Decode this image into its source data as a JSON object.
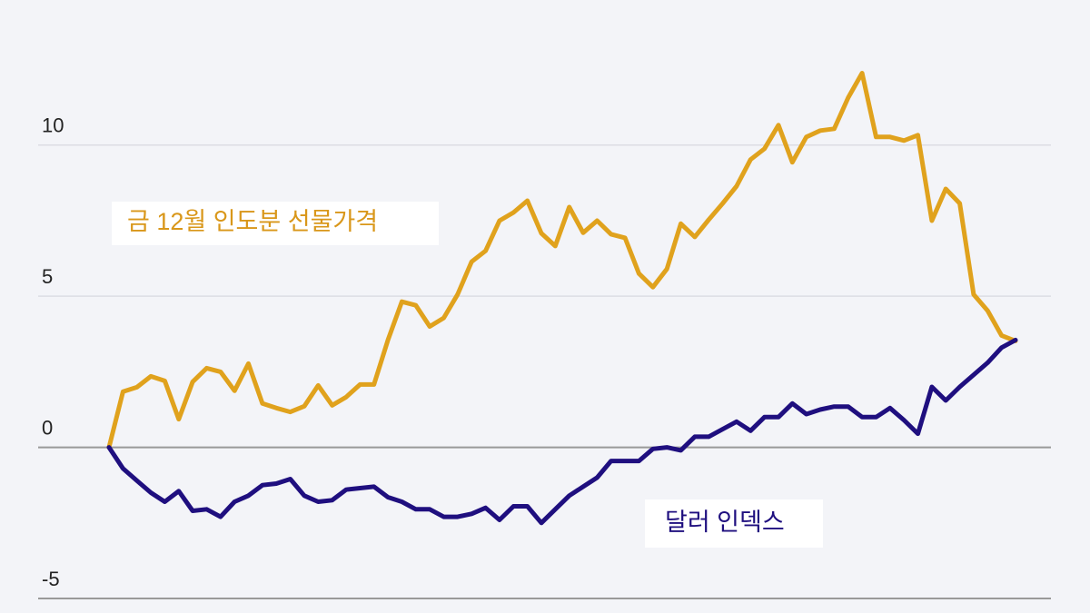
{
  "chart_data": {
    "type": "line",
    "x": [
      0,
      1,
      2,
      3,
      4,
      5,
      6,
      7,
      8,
      9,
      10,
      11,
      12,
      13,
      14,
      15,
      16,
      17,
      18,
      19,
      20,
      21,
      22,
      23,
      24,
      25,
      26,
      27,
      28,
      29,
      30,
      31,
      32,
      33,
      34,
      35,
      36,
      37,
      38,
      39,
      40,
      41,
      42,
      43,
      44,
      45,
      46,
      47,
      48,
      49,
      50,
      51,
      52,
      53,
      54,
      55,
      56,
      57,
      58,
      59,
      60,
      61,
      62,
      63,
      64,
      65
    ],
    "xlim": [
      0,
      65
    ],
    "ylim": [
      -5,
      14.8
    ],
    "yticks": [
      -5,
      0,
      5,
      10
    ],
    "grid": true,
    "series": [
      {
        "name": "금 12월 인도분 선물가격",
        "color": "#e0a21d",
        "values": [
          0,
          1.84,
          1.99,
          2.35,
          2.2,
          0.93,
          2.17,
          2.62,
          2.5,
          1.87,
          2.77,
          1.45,
          1.3,
          1.17,
          1.36,
          2.05,
          1.39,
          1.66,
          2.08,
          2.08,
          3.55,
          4.82,
          4.7,
          4.0,
          4.28,
          5.06,
          6.14,
          6.5,
          7.5,
          7.77,
          8.16,
          7.08,
          6.66,
          7.95,
          7.1,
          7.5,
          7.05,
          6.93,
          5.75,
          5.3,
          5.9,
          7.4,
          6.96,
          7.53,
          8.07,
          8.64,
          9.52,
          9.88,
          10.66,
          9.43,
          10.27,
          10.48,
          10.54,
          11.57,
          12.38,
          10.27,
          10.27,
          10.15,
          10.33,
          7.5,
          8.55,
          8.07,
          5.06,
          4.52,
          3.7,
          3.52
        ]
      },
      {
        "name": "달러 인덱스",
        "color": "#1f0f7f",
        "values": [
          0,
          -0.7,
          -1.1,
          -1.5,
          -1.8,
          -1.45,
          -2.1,
          -2.05,
          -2.3,
          -1.8,
          -1.6,
          -1.25,
          -1.2,
          -1.05,
          -1.6,
          -1.8,
          -1.75,
          -1.4,
          -1.35,
          -1.3,
          -1.65,
          -1.8,
          -2.05,
          -2.05,
          -2.3,
          -2.3,
          -2.2,
          -2.0,
          -2.4,
          -1.95,
          -1.95,
          -2.5,
          -2.05,
          -1.6,
          -1.3,
          -1.0,
          -0.45,
          -0.45,
          -0.45,
          -0.05,
          0.0,
          -0.1,
          0.35,
          0.35,
          0.6,
          0.85,
          0.55,
          1.0,
          1.0,
          1.45,
          1.1,
          1.25,
          1.35,
          1.35,
          1.0,
          1.0,
          1.3,
          0.9,
          0.45,
          2.0,
          1.55,
          2.0,
          2.4,
          2.8,
          3.3,
          3.55
        ]
      }
    ]
  }
}
